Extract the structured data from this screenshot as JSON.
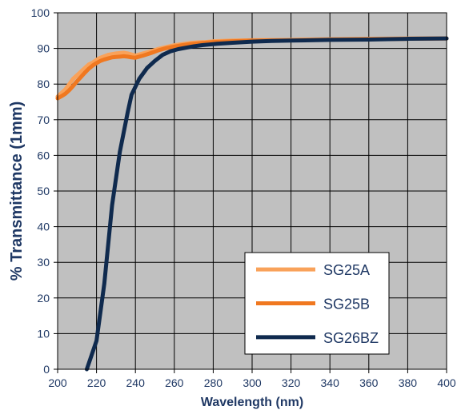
{
  "chart_data": {
    "type": "line",
    "title": "",
    "xlabel": "Wavelength (nm)",
    "ylabel": "% Transmittance (1mm)",
    "xlim": [
      200,
      400
    ],
    "ylim": [
      0,
      100
    ],
    "x_ticks": [
      200,
      220,
      240,
      260,
      280,
      300,
      320,
      340,
      360,
      380,
      400
    ],
    "y_ticks": [
      0,
      10,
      20,
      30,
      40,
      50,
      60,
      70,
      80,
      90,
      100
    ],
    "grid": true,
    "legend_position": "bottom-right",
    "colors": {
      "plot_background": "#c0c0c0",
      "grid": "#000000",
      "axis_text": "#1f3864",
      "axis_label": "#1f3864"
    },
    "series": [
      {
        "name": "SG25A",
        "color": "#f9a25a",
        "points": [
          [
            200,
            76.5
          ],
          [
            202,
            77.5
          ],
          [
            204,
            78.5
          ],
          [
            206,
            80
          ],
          [
            208,
            81.5
          ],
          [
            210,
            82.5
          ],
          [
            212,
            83.5
          ],
          [
            214,
            84.5
          ],
          [
            216,
            85.5
          ],
          [
            218,
            86
          ],
          [
            220,
            86.8
          ],
          [
            222,
            87.4
          ],
          [
            224,
            87.8
          ],
          [
            226,
            88.2
          ],
          [
            228,
            88.4
          ],
          [
            230,
            88.6
          ],
          [
            232,
            88.7
          ],
          [
            234,
            88.8
          ],
          [
            236,
            88.6
          ],
          [
            238,
            88.3
          ],
          [
            240,
            88.0
          ],
          [
            244,
            88.6
          ],
          [
            248,
            89.2
          ],
          [
            252,
            89.9
          ],
          [
            256,
            90.4
          ],
          [
            260,
            90.9
          ],
          [
            264,
            91.2
          ],
          [
            268,
            91.5
          ],
          [
            272,
            91.7
          ],
          [
            276,
            91.8
          ],
          [
            280,
            92.0
          ],
          [
            290,
            92.2
          ],
          [
            300,
            92.3
          ],
          [
            320,
            92.4
          ],
          [
            340,
            92.6
          ],
          [
            360,
            92.7
          ],
          [
            380,
            92.8
          ],
          [
            400,
            92.8
          ]
        ]
      },
      {
        "name": "SG25B",
        "color": "#f07820",
        "points": [
          [
            200,
            76.0
          ],
          [
            202,
            76.6
          ],
          [
            204,
            77.3
          ],
          [
            206,
            78.3
          ],
          [
            208,
            79.5
          ],
          [
            210,
            80.8
          ],
          [
            212,
            82.0
          ],
          [
            214,
            83.2
          ],
          [
            216,
            84.3
          ],
          [
            218,
            85.2
          ],
          [
            220,
            85.9
          ],
          [
            222,
            86.5
          ],
          [
            224,
            86.9
          ],
          [
            226,
            87.2
          ],
          [
            228,
            87.5
          ],
          [
            230,
            87.6
          ],
          [
            232,
            87.7
          ],
          [
            234,
            87.8
          ],
          [
            236,
            87.7
          ],
          [
            238,
            87.5
          ],
          [
            240,
            87.4
          ],
          [
            244,
            88.0
          ],
          [
            248,
            88.7
          ],
          [
            252,
            89.5
          ],
          [
            256,
            90.1
          ],
          [
            260,
            90.5
          ],
          [
            264,
            90.9
          ],
          [
            268,
            91.2
          ],
          [
            272,
            91.4
          ],
          [
            276,
            91.6
          ],
          [
            280,
            91.8
          ],
          [
            290,
            92.0
          ],
          [
            300,
            92.2
          ],
          [
            320,
            92.3
          ],
          [
            340,
            92.5
          ],
          [
            360,
            92.6
          ],
          [
            380,
            92.7
          ],
          [
            400,
            92.8
          ]
        ]
      },
      {
        "name": "SG26BZ",
        "color": "#0f2a4e",
        "points": [
          [
            215,
            0
          ],
          [
            220,
            8
          ],
          [
            224,
            24
          ],
          [
            228,
            46
          ],
          [
            232,
            61
          ],
          [
            234,
            66.5
          ],
          [
            236,
            72
          ],
          [
            238,
            77
          ],
          [
            242,
            81.5
          ],
          [
            246,
            84.5
          ],
          [
            250,
            86.5
          ],
          [
            254,
            88.2
          ],
          [
            258,
            89.2
          ],
          [
            262,
            89.8
          ],
          [
            266,
            90.2
          ],
          [
            270,
            90.6
          ],
          [
            274,
            90.9
          ],
          [
            278,
            91.1
          ],
          [
            282,
            91.3
          ],
          [
            290,
            91.6
          ],
          [
            300,
            91.9
          ],
          [
            310,
            92.1
          ],
          [
            320,
            92.2
          ],
          [
            340,
            92.4
          ],
          [
            360,
            92.5
          ],
          [
            370,
            92.6
          ],
          [
            380,
            92.7
          ],
          [
            400,
            92.8
          ]
        ]
      }
    ]
  }
}
